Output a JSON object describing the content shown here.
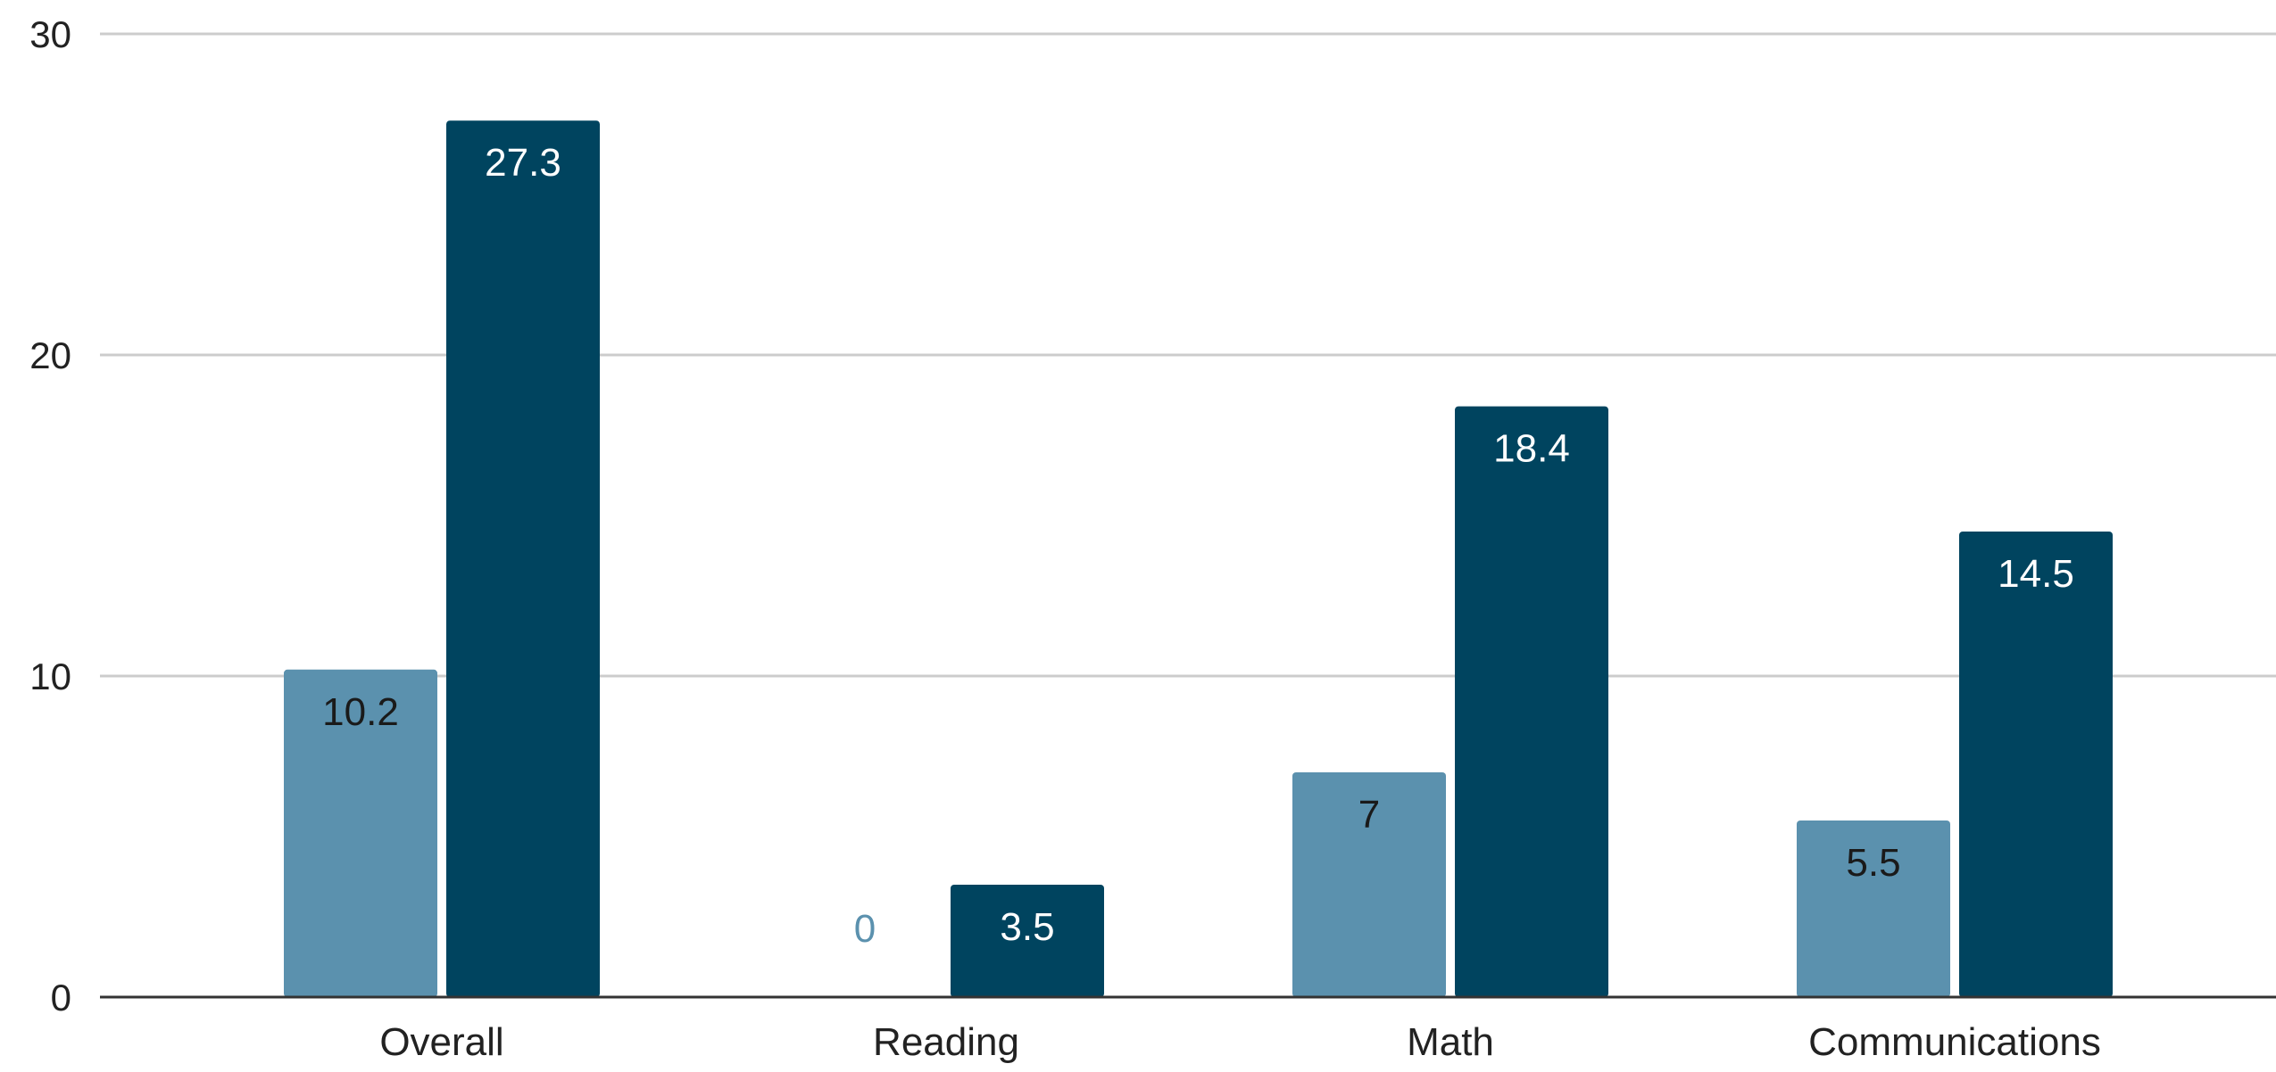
{
  "chart_data": {
    "type": "bar",
    "title": "",
    "xlabel": "",
    "ylabel": "",
    "categories": [
      "Overall",
      "Reading",
      "Math",
      "Communications"
    ],
    "series": [
      {
        "values": [
          10.2,
          0,
          7,
          5.5
        ],
        "color": "#5b91ae",
        "label_color_inside": "#1a1a1a",
        "label_color_outside": "#5b91ae"
      },
      {
        "values": [
          27.3,
          3.5,
          18.4,
          14.5
        ],
        "color": "#00445f",
        "label_color_inside": "#ffffff",
        "label_color_outside": "#00445f"
      }
    ],
    "ylim": [
      0,
      30
    ],
    "yticks": [
      0,
      10,
      20,
      30
    ],
    "grid": true,
    "legend": "none",
    "colors": {
      "grid": "#cccccc",
      "axis": "#333333"
    }
  }
}
